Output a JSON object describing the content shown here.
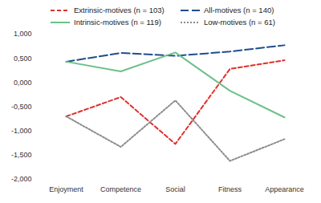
{
  "chart_data": {
    "type": "line",
    "categories": [
      "Enjoyment",
      "Competence",
      "Social",
      "Fitness",
      "Appearance"
    ],
    "series": [
      {
        "name": "Extrinsic-motives (n = 103)",
        "color": "#e0302e",
        "line_style": "dashed",
        "values": [
          -0.7,
          -0.3,
          -1.27,
          0.28,
          0.46
        ]
      },
      {
        "name": "All-motives (n = 140)",
        "color": "#1f4e8c",
        "line_style": "long_dash",
        "values": [
          0.43,
          0.61,
          0.55,
          0.64,
          0.77
        ]
      },
      {
        "name": "Intrinsic-motives (n = 119)",
        "color": "#6cc08b",
        "line_style": "solid",
        "values": [
          0.43,
          0.23,
          0.62,
          -0.17,
          -0.72
        ]
      },
      {
        "name": "Low-motives (n = 61)",
        "color": "#8c8c8c",
        "line_style": "dotted",
        "values": [
          -0.7,
          -1.33,
          -0.37,
          -1.62,
          -1.17
        ]
      }
    ],
    "ylim": [
      -2,
      1
    ],
    "yticks": [
      {
        "value": -2,
        "label": "-2,000"
      },
      {
        "value": -1.5,
        "label": "-1,500"
      },
      {
        "value": -1,
        "label": "-1,000"
      },
      {
        "value": -0.5,
        "label": "-0,500"
      },
      {
        "value": 0,
        "label": "0,000"
      },
      {
        "value": 0.5,
        "label": "0,500"
      },
      {
        "value": 1,
        "label": "1,000"
      }
    ],
    "grid": false,
    "legend": "top"
  }
}
